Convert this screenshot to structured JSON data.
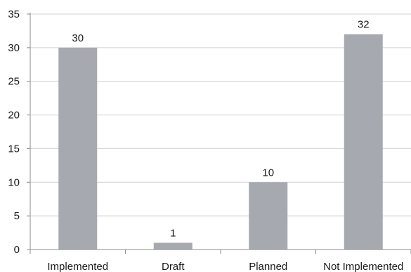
{
  "chart_data": {
    "type": "bar",
    "title": "",
    "xlabel": "",
    "ylabel": "",
    "categories": [
      "Implemented",
      "Draft",
      "Planned",
      "Not Implemented"
    ],
    "values": [
      30,
      1,
      10,
      32
    ],
    "data_labels": [
      "30",
      "1",
      "10",
      "32"
    ],
    "ylim": [
      0,
      35
    ],
    "yticks": [
      0,
      5,
      10,
      15,
      20,
      25,
      30,
      35
    ],
    "ytick_labels": [
      "0",
      "5",
      "10",
      "15",
      "20",
      "25",
      "30",
      "35"
    ],
    "grid": true,
    "legend": "none",
    "colors": {
      "bar": "#a6a9b0",
      "grid": "#d0d0d0",
      "axis": "#8c8c8c",
      "text": "#1a1a1a"
    }
  }
}
